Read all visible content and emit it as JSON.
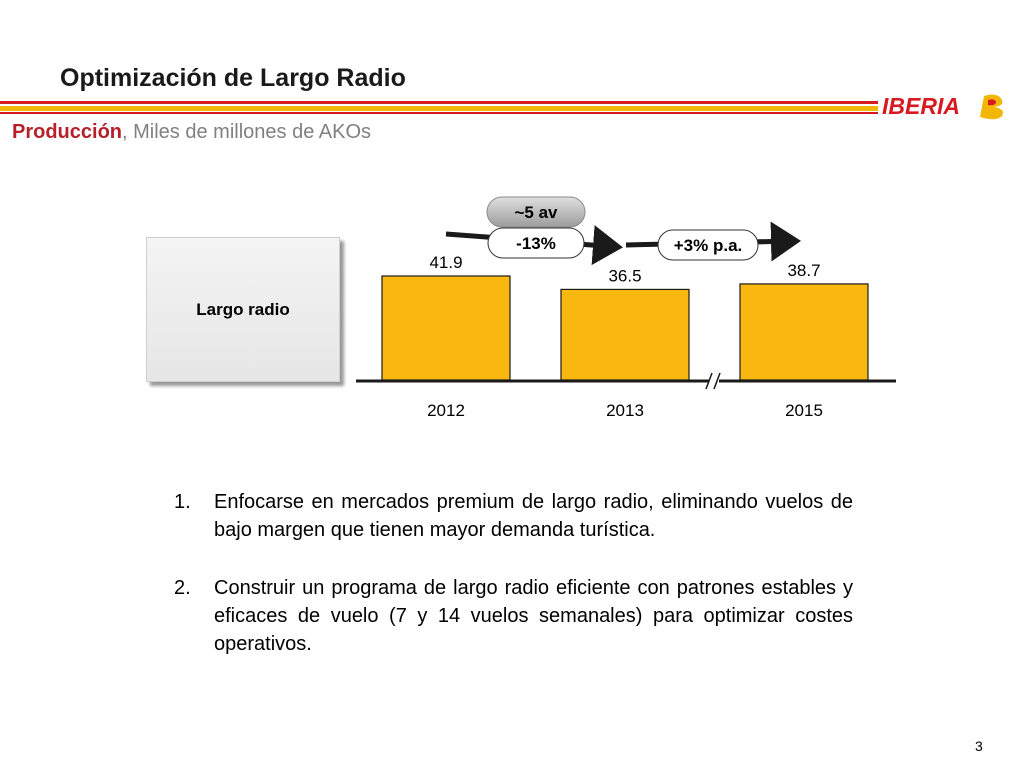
{
  "header": {
    "title": "Optimización de Largo Radio",
    "subtitle_bold": "Producción",
    "subtitle_rest": ", Miles de millones de AKOs",
    "logo_text": "IBERIA"
  },
  "label_box": {
    "text": "Largo radio"
  },
  "annotations": {
    "gray_pill": "~5 av",
    "change_left": "-13%",
    "change_right": "+3% p.a."
  },
  "chart_data": {
    "type": "bar",
    "categories": [
      "2012",
      "2013",
      "2015"
    ],
    "values": [
      41.9,
      36.5,
      38.7
    ],
    "data_labels": [
      "41.9",
      "36.5",
      "38.7"
    ],
    "axis_break_between": [
      "2013",
      "2015"
    ],
    "bar_color": "#f8b80f",
    "ylim": [
      0,
      41.9
    ]
  },
  "list_items": [
    {
      "num": "1.",
      "text": "Enfocarse en mercados premium de largo radio, eliminando vuelos de bajo margen que tienen mayor demanda turística."
    },
    {
      "num": "2.",
      "text": "Construir un programa de largo radio eficiente con patrones estables y eficaces de vuelo (7 y 14 vuelos semanales) para optimizar costes operativos."
    }
  ],
  "page_number": "3",
  "colors": {
    "brand_red": "#d71920",
    "brand_yellow": "#f2b705"
  }
}
